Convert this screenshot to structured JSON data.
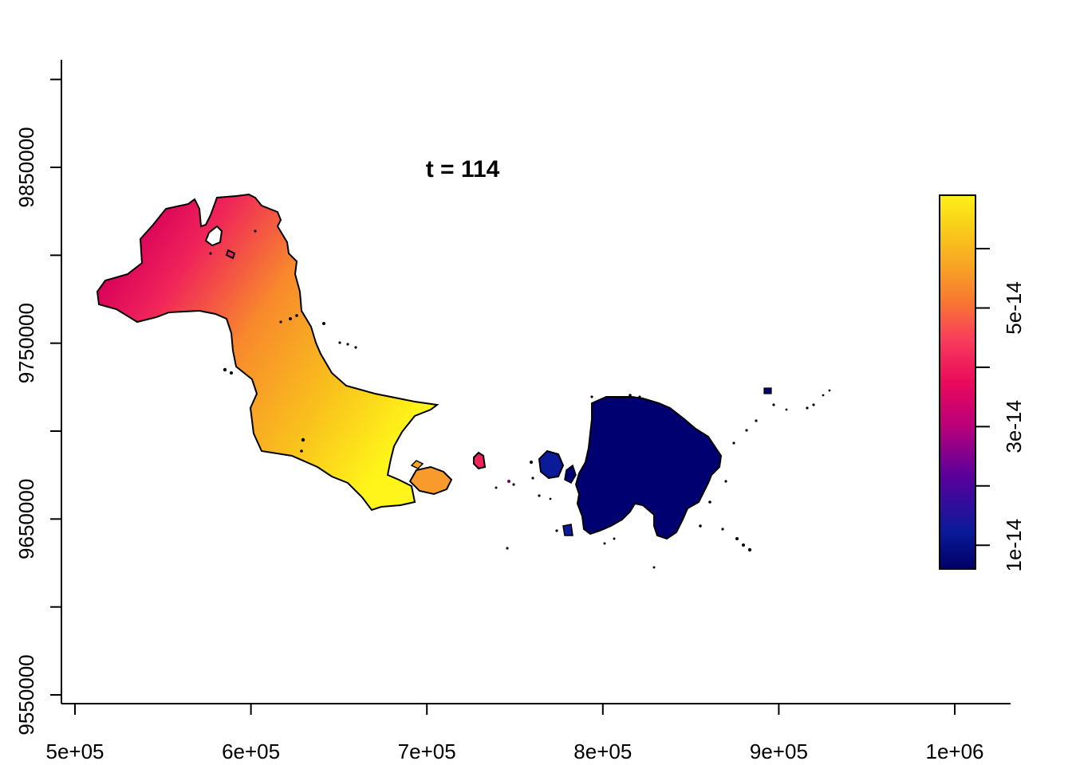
{
  "chart_data": {
    "type": "raster-map",
    "title": "t = 114",
    "xlabel": "",
    "ylabel": "",
    "x_ticks": [
      "5e+05",
      "6e+05",
      "7e+05",
      "8e+05",
      "9e+05",
      "1e+06"
    ],
    "x_tick_values": [
      500000,
      600000,
      700000,
      800000,
      900000,
      1000000
    ],
    "y_ticks": [
      "9550000",
      "9650000",
      "9750000",
      "9850000"
    ],
    "y_tick_values": [
      9550000,
      9650000,
      9750000,
      9850000
    ],
    "xlim": [
      495000,
      1030000
    ],
    "ylim": [
      9545000,
      9905000
    ],
    "grid": false,
    "legend": {
      "type": "colorbar",
      "position": "right",
      "tick_labels": [
        "1e-14",
        "3e-14",
        "5e-14"
      ],
      "tick_values": [
        1e-14,
        3e-14,
        5e-14
      ],
      "range": [
        6e-15,
        6.9e-14
      ],
      "palette": [
        "#000066",
        "#0a1a99",
        "#5a009a",
        "#b8007a",
        "#e8105a",
        "#f8405a",
        "#f87a30",
        "#f8a824",
        "#f8d018",
        "#fff01a"
      ]
    },
    "regions": [
      {
        "name": "",
        "value_range": [
          3.4e-14,
          6.9e-14
        ]
      },
      {
        "name": "",
        "value_range": [
          6e-15,
          1.2e-14
        ]
      }
    ]
  }
}
